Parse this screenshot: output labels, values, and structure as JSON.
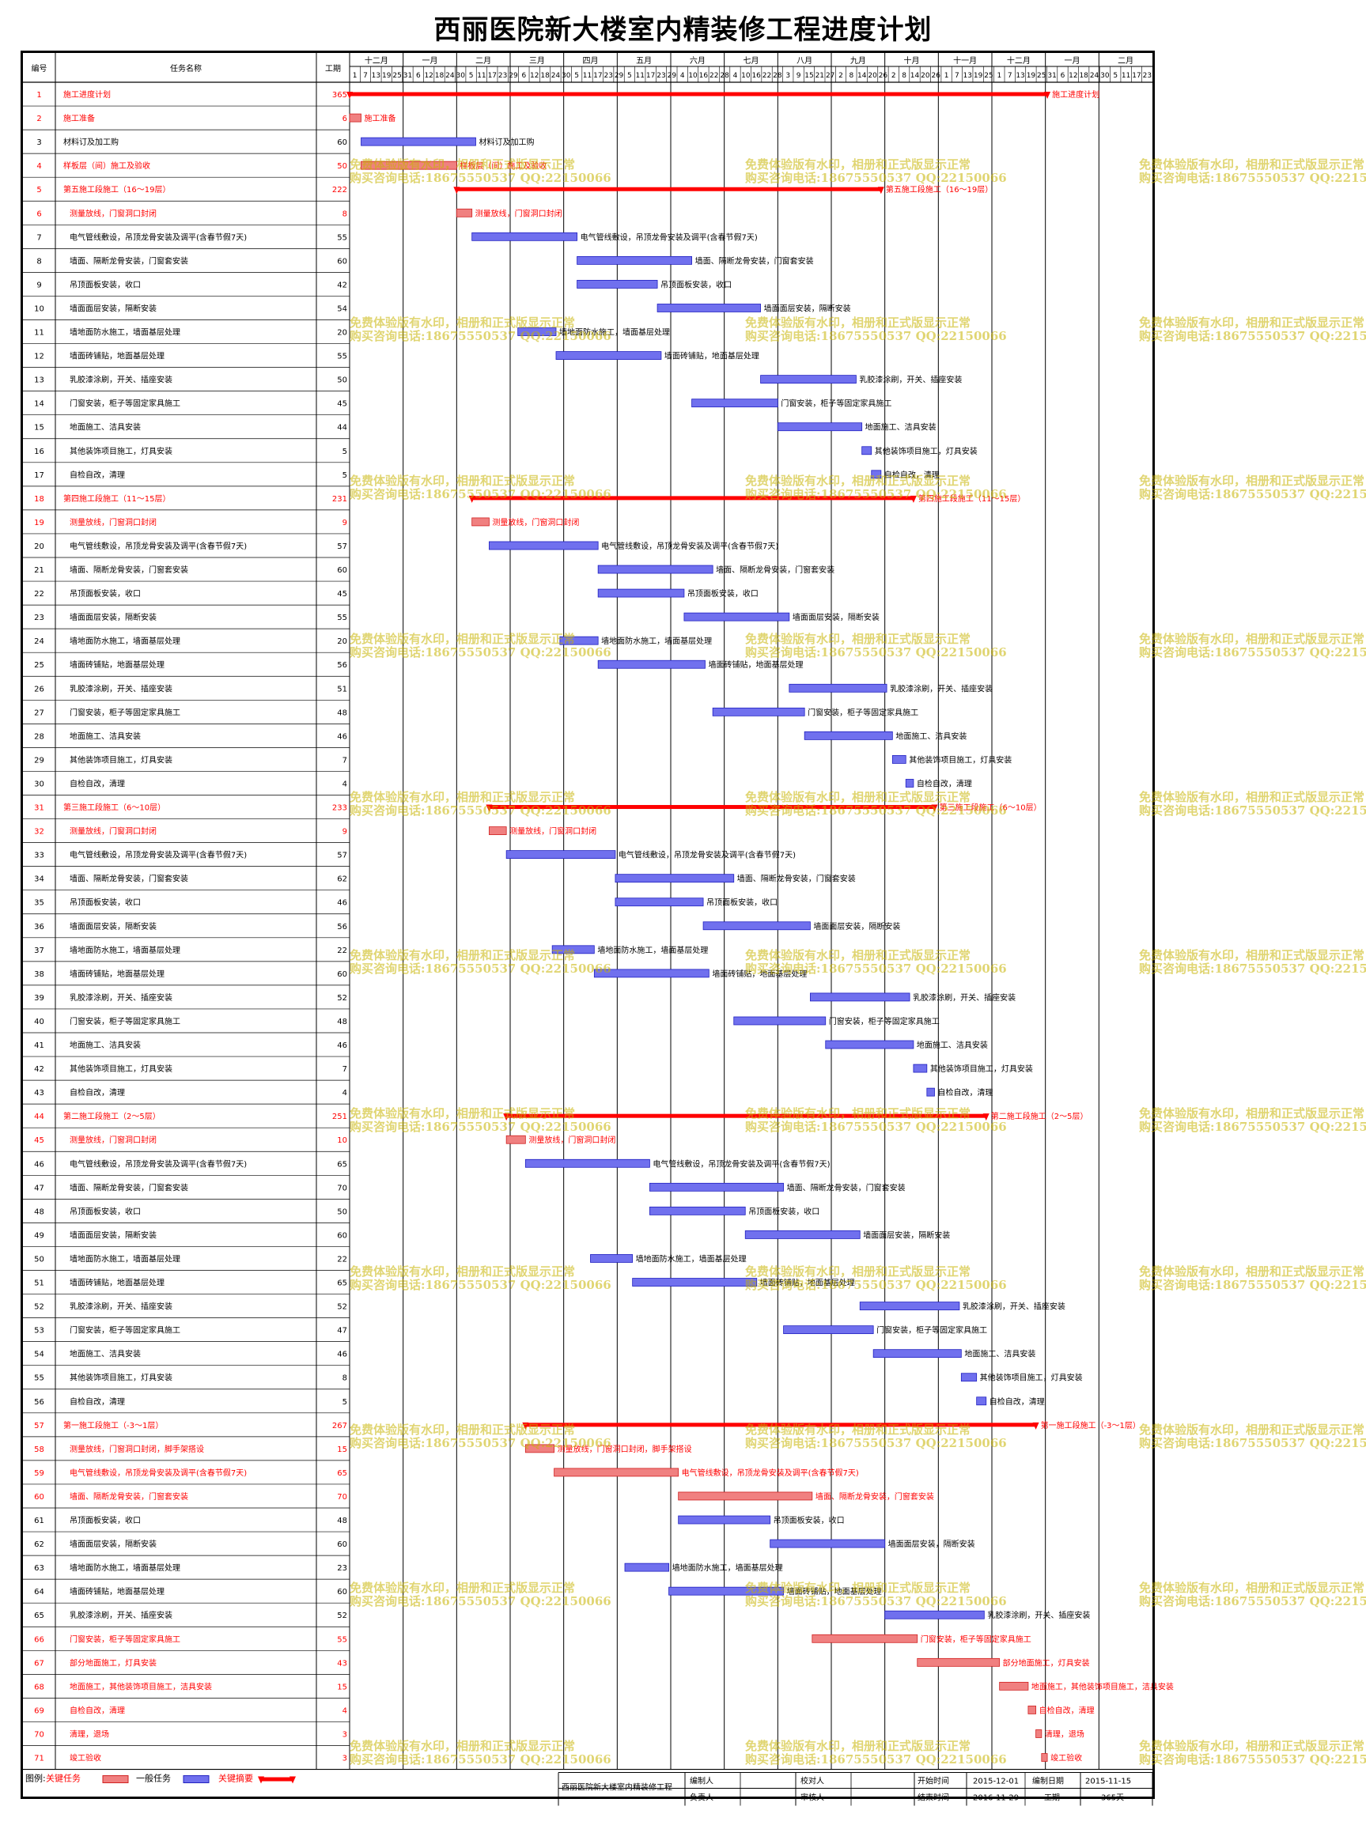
{
  "title": "西丽医院新大楼室内精装修工程进度计划",
  "columns": {
    "id": "编号",
    "name": "任务名称",
    "duration": "工期"
  },
  "months": [
    "十二月",
    "一月",
    "二月",
    "三月",
    "四月",
    "五月",
    "六月",
    "七月",
    "八月",
    "九月",
    "十月",
    "十一月",
    "十二月",
    "一月",
    "二月"
  ],
  "days": [
    "1",
    "7",
    "13",
    "19",
    "25",
    "31",
    "6",
    "12",
    "18",
    "24",
    "30",
    "5",
    "11",
    "17",
    "23",
    "29",
    "6",
    "12",
    "18",
    "24",
    "30",
    "5",
    "11",
    "17",
    "23",
    "29",
    "5",
    "11",
    "17",
    "23",
    "29",
    "4",
    "10",
    "16",
    "22",
    "28",
    "4",
    "10",
    "16",
    "22",
    "28",
    "3",
    "9",
    "15",
    "21",
    "27",
    "2",
    "8",
    "14",
    "20",
    "26",
    "2",
    "8",
    "14",
    "20",
    "26",
    "1",
    "7",
    "13",
    "19",
    "25",
    "1",
    "7",
    "13",
    "19",
    "25",
    "31",
    "6",
    "12",
    "18",
    "24",
    "30",
    "5",
    "11",
    "17",
    "23"
  ],
  "tasks": [
    {
      "id": "1",
      "name": "施工进度计划",
      "dur": "365",
      "type": "crit-sum",
      "start": 0,
      "days": 365,
      "label": "施工进度计划"
    },
    {
      "id": "2",
      "name": "施工准备",
      "dur": "6",
      "type": "crit",
      "start": 0,
      "days": 6,
      "label": "施工准备"
    },
    {
      "id": "3",
      "name": "材料订及加工购",
      "dur": "60",
      "type": "norm",
      "start": 6,
      "days": 60,
      "label": "材料订及加工购"
    },
    {
      "id": "4",
      "name": "样板层（间）施工及验收",
      "dur": "50",
      "type": "crit",
      "start": 6,
      "days": 50,
      "label": "样板层（间）施工及验收"
    },
    {
      "id": "5",
      "name": "第五施工段施工（16～19层）",
      "dur": "222",
      "type": "crit-sum",
      "start": 56,
      "days": 222,
      "label": "第五施工段施工（16～19层）"
    },
    {
      "id": "6",
      "name": "测量放线，门窗洞口封闭",
      "dur": "8",
      "type": "crit",
      "start": 56,
      "days": 8,
      "label": "测量放线，门窗洞口封闭"
    },
    {
      "id": "7",
      "name": "电气管线敷设，吊顶龙骨安装及调平(含春节假7天)",
      "dur": "55",
      "type": "norm",
      "start": 64,
      "days": 55,
      "label": "电气管线敷设，吊顶龙骨安装及调平(含春节假7天)"
    },
    {
      "id": "8",
      "name": "墙面、隔断龙骨安装，门窗套安装",
      "dur": "60",
      "type": "norm",
      "start": 119,
      "days": 60,
      "label": "墙面、隔断龙骨安装，门窗套安装"
    },
    {
      "id": "9",
      "name": "吊顶面板安装，收口",
      "dur": "42",
      "type": "norm",
      "start": 119,
      "days": 42,
      "label": "吊顶面板安装，收口"
    },
    {
      "id": "10",
      "name": "墙面面层安装，隔断安装",
      "dur": "54",
      "type": "norm",
      "start": 161,
      "days": 54,
      "label": "墙面面层安装，隔断安装"
    },
    {
      "id": "11",
      "name": "墙地面防水施工，墙面基层处理",
      "dur": "20",
      "type": "norm",
      "start": 88,
      "days": 20,
      "label": "墙地面防水施工，墙面基层处理"
    },
    {
      "id": "12",
      "name": "墙面砖铺贴，地面基层处理",
      "dur": "55",
      "type": "norm",
      "start": 108,
      "days": 55,
      "label": "墙面砖铺贴，地面基层处理"
    },
    {
      "id": "13",
      "name": "乳胶漆涂刷，开关、插座安装",
      "dur": "50",
      "type": "norm",
      "start": 215,
      "days": 50,
      "label": "乳胶漆涂刷，开关、插座安装"
    },
    {
      "id": "14",
      "name": "门窗安装，柜子等固定家具施工",
      "dur": "45",
      "type": "norm",
      "start": 179,
      "days": 45,
      "label": "门窗安装，柜子等固定家具施工"
    },
    {
      "id": "15",
      "name": "地面施工、洁具安装",
      "dur": "44",
      "type": "norm",
      "start": 224,
      "days": 44,
      "label": "地面施工、洁具安装"
    },
    {
      "id": "16",
      "name": "其他装饰项目施工，灯具安装",
      "dur": "5",
      "type": "norm",
      "start": 268,
      "days": 5,
      "label": "其他装饰项目施工，灯具安装"
    },
    {
      "id": "17",
      "name": "自检自改，清理",
      "dur": "5",
      "type": "norm",
      "start": 273,
      "days": 5,
      "label": "自检自改，清理"
    },
    {
      "id": "18",
      "name": "第四施工段施工（11～15层）",
      "dur": "231",
      "type": "crit-sum",
      "start": 64,
      "days": 231,
      "label": "第四施工段施工（11～15层）"
    },
    {
      "id": "19",
      "name": "测量放线，门窗洞口封闭",
      "dur": "9",
      "type": "crit",
      "start": 64,
      "days": 9,
      "label": "测量放线，门窗洞口封闭"
    },
    {
      "id": "20",
      "name": "电气管线敷设，吊顶龙骨安装及调平(含春节假7天)",
      "dur": "57",
      "type": "norm",
      "start": 73,
      "days": 57,
      "label": "电气管线敷设，吊顶龙骨安装及调平(含春节假7天)"
    },
    {
      "id": "21",
      "name": "墙面、隔断龙骨安装，门窗套安装",
      "dur": "60",
      "type": "norm",
      "start": 130,
      "days": 60,
      "label": "墙面、隔断龙骨安装，门窗套安装"
    },
    {
      "id": "22",
      "name": "吊顶面板安装，收口",
      "dur": "45",
      "type": "norm",
      "start": 130,
      "days": 45,
      "label": "吊顶面板安装，收口"
    },
    {
      "id": "23",
      "name": "墙面面层安装，隔断安装",
      "dur": "55",
      "type": "norm",
      "start": 175,
      "days": 55,
      "label": "墙面面层安装，隔断安装"
    },
    {
      "id": "24",
      "name": "墙地面防水施工，墙面基层处理",
      "dur": "20",
      "type": "norm",
      "start": 110,
      "days": 20,
      "label": "墙地面防水施工，墙面基层处理"
    },
    {
      "id": "25",
      "name": "墙面砖铺贴，地面基层处理",
      "dur": "56",
      "type": "norm",
      "start": 130,
      "days": 56,
      "label": "墙面砖铺贴，地面基层处理"
    },
    {
      "id": "26",
      "name": "乳胶漆涂刷，开关、插座安装",
      "dur": "51",
      "type": "norm",
      "start": 230,
      "days": 51,
      "label": "乳胶漆涂刷，开关、插座安装"
    },
    {
      "id": "27",
      "name": "门窗安装，柜子等固定家具施工",
      "dur": "48",
      "type": "norm",
      "start": 190,
      "days": 48,
      "label": "门窗安装，柜子等固定家具施工"
    },
    {
      "id": "28",
      "name": "地面施工、洁具安装",
      "dur": "46",
      "type": "norm",
      "start": 238,
      "days": 46,
      "label": "地面施工、洁具安装"
    },
    {
      "id": "29",
      "name": "其他装饰项目施工，灯具安装",
      "dur": "7",
      "type": "norm",
      "start": 284,
      "days": 7,
      "label": "其他装饰项目施工，灯具安装"
    },
    {
      "id": "30",
      "name": "自检自改，清理",
      "dur": "4",
      "type": "norm",
      "start": 291,
      "days": 4,
      "label": "自检自改，清理"
    },
    {
      "id": "31",
      "name": "第三施工段施工（6～10层）",
      "dur": "233",
      "type": "crit-sum",
      "start": 73,
      "days": 233,
      "label": "第三施工段施工（6～10层）"
    },
    {
      "id": "32",
      "name": "测量放线，门窗洞口封闭",
      "dur": "9",
      "type": "crit",
      "start": 73,
      "days": 9,
      "label": "测量放线，门窗洞口封闭"
    },
    {
      "id": "33",
      "name": "电气管线敷设，吊顶龙骨安装及调平(含春节假7天)",
      "dur": "57",
      "type": "norm",
      "start": 82,
      "days": 57,
      "label": "电气管线敷设，吊顶龙骨安装及调平(含春节假7天)"
    },
    {
      "id": "34",
      "name": "墙面、隔断龙骨安装，门窗套安装",
      "dur": "62",
      "type": "norm",
      "start": 139,
      "days": 62,
      "label": "墙面、隔断龙骨安装，门窗套安装"
    },
    {
      "id": "35",
      "name": "吊顶面板安装，收口",
      "dur": "46",
      "type": "norm",
      "start": 139,
      "days": 46,
      "label": "吊顶面板安装，收口"
    },
    {
      "id": "36",
      "name": "墙面面层安装，隔断安装",
      "dur": "56",
      "type": "norm",
      "start": 185,
      "days": 56,
      "label": "墙面面层安装，隔断安装"
    },
    {
      "id": "37",
      "name": "墙地面防水施工，墙面基层处理",
      "dur": "22",
      "type": "norm",
      "start": 106,
      "days": 22,
      "label": "墙地面防水施工，墙面基层处理"
    },
    {
      "id": "38",
      "name": "墙面砖铺贴，地面基层处理",
      "dur": "60",
      "type": "norm",
      "start": 128,
      "days": 60,
      "label": "墙面砖铺贴，地面基层处理"
    },
    {
      "id": "39",
      "name": "乳胶漆涂刷，开关、插座安装",
      "dur": "52",
      "type": "norm",
      "start": 241,
      "days": 52,
      "label": "乳胶漆涂刷，开关、插座安装"
    },
    {
      "id": "40",
      "name": "门窗安装，柜子等固定家具施工",
      "dur": "48",
      "type": "norm",
      "start": 201,
      "days": 48,
      "label": "门窗安装，柜子等固定家具施工"
    },
    {
      "id": "41",
      "name": "地面施工、洁具安装",
      "dur": "46",
      "type": "norm",
      "start": 249,
      "days": 46,
      "label": "地面施工、洁具安装"
    },
    {
      "id": "42",
      "name": "其他装饰项目施工，灯具安装",
      "dur": "7",
      "type": "norm",
      "start": 295,
      "days": 7,
      "label": "其他装饰项目施工，灯具安装"
    },
    {
      "id": "43",
      "name": "自检自改，清理",
      "dur": "4",
      "type": "norm",
      "start": 302,
      "days": 4,
      "label": "自检自改，清理"
    },
    {
      "id": "44",
      "name": "第二施工段施工（2～5层）",
      "dur": "251",
      "type": "crit-sum",
      "start": 82,
      "days": 251,
      "label": "第二施工段施工（2～5层）"
    },
    {
      "id": "45",
      "name": "测量放线，门窗洞口封闭",
      "dur": "10",
      "type": "crit",
      "start": 82,
      "days": 10,
      "label": "测量放线，门窗洞口封闭"
    },
    {
      "id": "46",
      "name": "电气管线敷设，吊顶龙骨安装及调平(含春节假7天)",
      "dur": "65",
      "type": "norm",
      "start": 92,
      "days": 65,
      "label": "电气管线敷设，吊顶龙骨安装及调平(含春节假7天)"
    },
    {
      "id": "47",
      "name": "墙面、隔断龙骨安装，门窗套安装",
      "dur": "70",
      "type": "norm",
      "start": 157,
      "days": 70,
      "label": "墙面、隔断龙骨安装，门窗套安装"
    },
    {
      "id": "48",
      "name": "吊顶面板安装，收口",
      "dur": "50",
      "type": "norm",
      "start": 157,
      "days": 50,
      "label": "吊顶面板安装，收口"
    },
    {
      "id": "49",
      "name": "墙面面层安装，隔断安装",
      "dur": "60",
      "type": "norm",
      "start": 207,
      "days": 60,
      "label": "墙面面层安装，隔断安装"
    },
    {
      "id": "50",
      "name": "墙地面防水施工，墙面基层处理",
      "dur": "22",
      "type": "norm",
      "start": 126,
      "days": 22,
      "label": "墙地面防水施工，墙面基层处理"
    },
    {
      "id": "51",
      "name": "墙面砖铺贴，地面基层处理",
      "dur": "65",
      "type": "norm",
      "start": 148,
      "days": 65,
      "label": "墙面砖铺贴，地面基层处理"
    },
    {
      "id": "52",
      "name": "乳胶漆涂刷，开关、插座安装",
      "dur": "52",
      "type": "norm",
      "start": 267,
      "days": 52,
      "label": "乳胶漆涂刷，开关、插座安装"
    },
    {
      "id": "53",
      "name": "门窗安装，柜子等固定家具施工",
      "dur": "47",
      "type": "norm",
      "start": 227,
      "days": 47,
      "label": "门窗安装，柜子等固定家具施工"
    },
    {
      "id": "54",
      "name": "地面施工、洁具安装",
      "dur": "46",
      "type": "norm",
      "start": 274,
      "days": 46,
      "label": "地面施工、洁具安装"
    },
    {
      "id": "55",
      "name": "其他装饰项目施工，灯具安装",
      "dur": "8",
      "type": "norm",
      "start": 320,
      "days": 8,
      "label": "其他装饰项目施工，灯具安装"
    },
    {
      "id": "56",
      "name": "自检自改，清理",
      "dur": "5",
      "type": "norm",
      "start": 328,
      "days": 5,
      "label": "自检自改，清理"
    },
    {
      "id": "57",
      "name": "第一施工段施工（-3～1层）",
      "dur": "267",
      "type": "crit-sum",
      "start": 92,
      "days": 267,
      "label": "第一施工段施工（-3～1层）"
    },
    {
      "id": "58",
      "name": "测量放线，门窗洞口封闭，脚手架搭设",
      "dur": "15",
      "type": "crit",
      "start": 92,
      "days": 15,
      "label": "测量放线，门窗洞口封闭，脚手架搭设"
    },
    {
      "id": "59",
      "name": "电气管线敷设，吊顶龙骨安装及调平(含春节假7天)",
      "dur": "65",
      "type": "crit",
      "start": 107,
      "days": 65,
      "label": "电气管线敷设，吊顶龙骨安装及调平(含春节假7天)"
    },
    {
      "id": "60",
      "name": "墙面、隔断龙骨安装，门窗套安装",
      "dur": "70",
      "type": "crit",
      "start": 172,
      "days": 70,
      "label": "墙面、隔断龙骨安装，门窗套安装"
    },
    {
      "id": "61",
      "name": "吊顶面板安装，收口",
      "dur": "48",
      "type": "norm",
      "start": 172,
      "days": 48,
      "label": "吊顶面板安装，收口"
    },
    {
      "id": "62",
      "name": "墙面面层安装，隔断安装",
      "dur": "60",
      "type": "norm",
      "start": 220,
      "days": 60,
      "label": "墙面面层安装，隔断安装"
    },
    {
      "id": "63",
      "name": "墙地面防水施工，墙面基层处理",
      "dur": "23",
      "type": "norm",
      "start": 144,
      "days": 23,
      "label": "墙地面防水施工，墙面基层处理"
    },
    {
      "id": "64",
      "name": "墙面砖铺贴，地面基层处理",
      "dur": "60",
      "type": "norm",
      "start": 167,
      "days": 60,
      "label": "墙面砖铺贴，地面基层处理"
    },
    {
      "id": "65",
      "name": "乳胶漆涂刷，开关、插座安装",
      "dur": "52",
      "type": "norm",
      "start": 280,
      "days": 52,
      "label": "乳胶漆涂刷，开关、插座安装"
    },
    {
      "id": "66",
      "name": "门窗安装，柜子等固定家具施工",
      "dur": "55",
      "type": "crit",
      "start": 242,
      "days": 55,
      "label": "门窗安装，柜子等固定家具施工"
    },
    {
      "id": "67",
      "name": "部分地面施工，灯具安装",
      "dur": "43",
      "type": "crit",
      "start": 297,
      "days": 43,
      "label": "部分地面施工，灯具安装"
    },
    {
      "id": "68",
      "name": "地面施工，其他装饰项目施工，洁具安装",
      "dur": "15",
      "type": "crit",
      "start": 340,
      "days": 15,
      "label": "地面施工，其他装饰项目施工，洁具安装"
    },
    {
      "id": "69",
      "name": "自检自改，清理",
      "dur": "4",
      "type": "crit",
      "start": 355,
      "days": 4,
      "label": "自检自改，清理"
    },
    {
      "id": "70",
      "name": "清理，退场",
      "dur": "3",
      "type": "crit",
      "start": 359,
      "days": 3,
      "label": "清理，退场"
    },
    {
      "id": "71",
      "name": "竣工验收",
      "dur": "3",
      "type": "crit",
      "start": 362,
      "days": 3,
      "label": "竣工验收"
    }
  ],
  "legend": {
    "label": "图例:",
    "critical": "关键任务",
    "normal": "一般任务",
    "summary": "关键摘要"
  },
  "footer": {
    "project": "西丽医院新大楼室内精装修工程",
    "compiler": "编制人",
    "checker": "校对人",
    "start_label": "开始时间",
    "start_value": "2015-12-01",
    "date_label": "编制日期",
    "date_value": "2015-11-15",
    "responsible": "负责人",
    "reviewer": "审核人",
    "end_label": "结束时间",
    "end_value": "2016-11-29",
    "duration_label": "工期",
    "duration_value": "365天"
  },
  "watermark": {
    "line1": "免费体验版有水印，相册和正式版显示正常",
    "line2": "购买咨询电话:18675550537 QQ:22150066"
  },
  "colors": {
    "critical": "#f08080",
    "critical_border": "#d02020",
    "normal": "#7070ee",
    "normal_border": "#2020c0",
    "summary": "#ff0000",
    "grid": "#000000",
    "text_red": "#ff0000"
  }
}
